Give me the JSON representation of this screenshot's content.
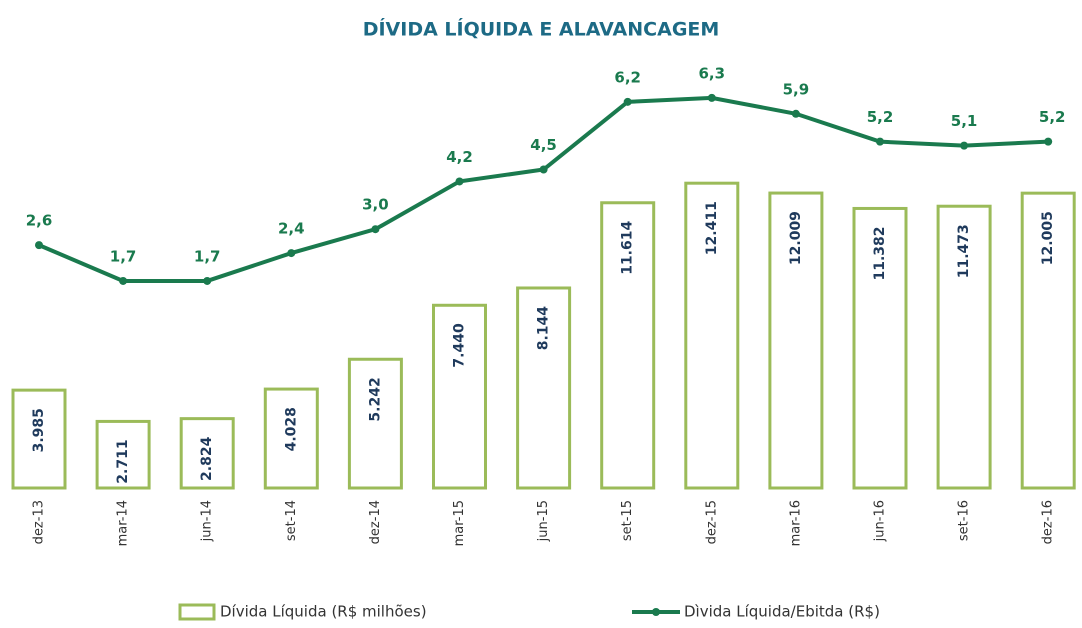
{
  "chart_data": {
    "type": "combo",
    "title": "DÍVIDA LÍQUIDA E ALAVANCAGEM",
    "categories": [
      "dez-13",
      "mar-14",
      "jun-14",
      "set-14",
      "dez-14",
      "mar-15",
      "jun-15",
      "set-15",
      "dez-15",
      "mar-16",
      "jun-16",
      "set-16",
      "dez-16"
    ],
    "ylim": [
      0,
      12500
    ],
    "y2lim": [
      0,
      7
    ],
    "series": [
      {
        "name": "Dívida Líquida (R$ milhões)",
        "type": "bar",
        "color": "#9bbb59",
        "values": [
          3985,
          2711,
          2824,
          4028,
          5242,
          7440,
          8144,
          11614,
          12411,
          12009,
          11382,
          11473,
          12005
        ],
        "value_labels": [
          "3.985",
          "2.711",
          "2.824",
          "4.028",
          "5.242",
          "7.440",
          "8.144",
          "11.614",
          "12.411",
          "12.009",
          "11.382",
          "11.473",
          "12.005"
        ]
      },
      {
        "name": "Dìvida Líquida/Ebitda (R$)",
        "type": "line",
        "axis": "y2",
        "color": "#1a7a4e",
        "values": [
          2.6,
          1.7,
          1.7,
          2.4,
          3.0,
          4.2,
          4.5,
          6.2,
          6.3,
          5.9,
          5.2,
          5.1,
          5.2
        ],
        "value_labels": [
          "2,6",
          "1,7",
          "1,7",
          "2,4",
          "3,0",
          "4,2",
          "4,5",
          "6,2",
          "6,3",
          "5,9",
          "5,2",
          "5,1",
          "5,2"
        ]
      }
    ]
  }
}
